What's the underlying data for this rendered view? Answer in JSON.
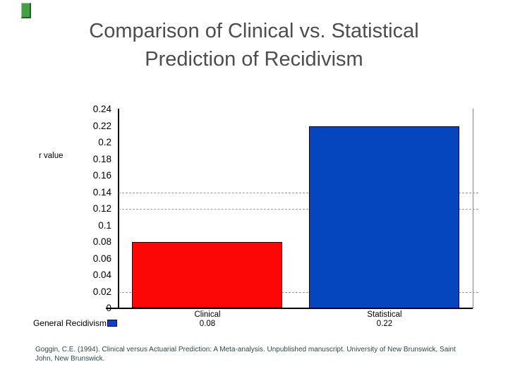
{
  "slide": {
    "title": {
      "line1": "Comparison of Clinical vs. Statistical",
      "line2": "Prediction of Recidivism"
    },
    "title_color": "#4d4d4d",
    "accent_bar_color": "#44a044"
  },
  "chart_data": {
    "type": "bar",
    "title": "",
    "categories": [
      "Clinical",
      "Statistical"
    ],
    "values": [
      0.08,
      0.22
    ],
    "value_labels": [
      "0.08",
      "0.22"
    ],
    "series": [
      {
        "name": "General Recidivism",
        "values": [
          0.08,
          0.22
        ]
      }
    ],
    "bar_colors": [
      "#fc0606",
      "#0545be"
    ],
    "xlabel": "",
    "ylabel": "r value",
    "ylim": [
      0,
      0.24
    ],
    "ytick_labels": [
      "0.24",
      "0.22",
      "0.2",
      "0.18",
      "0.16",
      "0.14",
      "0.12",
      "0.1",
      "0.08",
      "0.06",
      "0.04",
      "0.02",
      "0"
    ],
    "gridlines_at": [
      0.14,
      0.12,
      0.02
    ],
    "grid_style": "dashed",
    "legend": {
      "label": "General Recidivism",
      "marker_color": "#0f40c8",
      "position": "bottom-left"
    }
  },
  "citation": {
    "line1": "Goggin, C.E. (1994). Clinical versus Actuarial Prediction: A Meta-analysis.  Unpublished manuscript.  University of New Brunswick, Saint",
    "line2": "John, New Brunswick."
  }
}
